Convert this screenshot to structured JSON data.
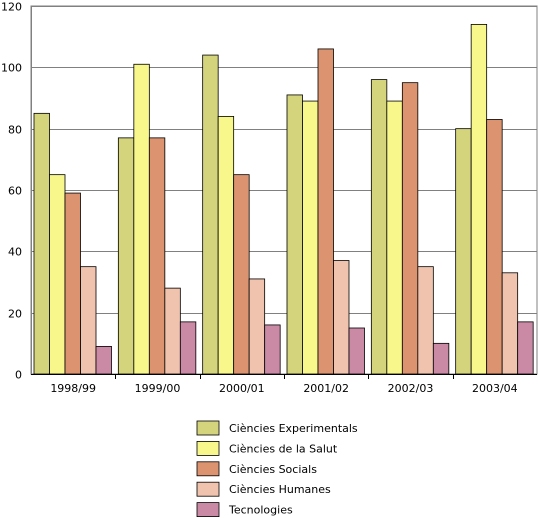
{
  "chart_data": {
    "type": "bar",
    "title": "",
    "xlabel": "",
    "ylabel": "",
    "categories": [
      "1998/99",
      "1999/00",
      "2000/01",
      "2001/02",
      "2002/03",
      "2003/04"
    ],
    "ylim": [
      0,
      120
    ],
    "yticks": [
      0,
      20,
      40,
      60,
      80,
      100,
      120
    ],
    "grid": true,
    "legend_position": "bottom",
    "series": [
      {
        "name": "Ciències Experimentals",
        "color": "#d4d47c",
        "values": [
          85,
          77,
          104,
          91,
          96,
          80
        ]
      },
      {
        "name": "Ciències de la Salut",
        "color": "#f7f78c",
        "values": [
          65,
          101,
          84,
          89,
          89,
          114
        ]
      },
      {
        "name": "Ciències Socials",
        "color": "#dc9470",
        "values": [
          59,
          77,
          65,
          106,
          95,
          83
        ]
      },
      {
        "name": "Ciències Humanes",
        "color": "#efc3ae",
        "values": [
          35,
          28,
          31,
          37,
          35,
          33
        ]
      },
      {
        "name": "Tecnologies",
        "color": "#ca8aa5",
        "values": [
          9,
          17,
          16,
          15,
          10,
          17
        ]
      }
    ]
  }
}
